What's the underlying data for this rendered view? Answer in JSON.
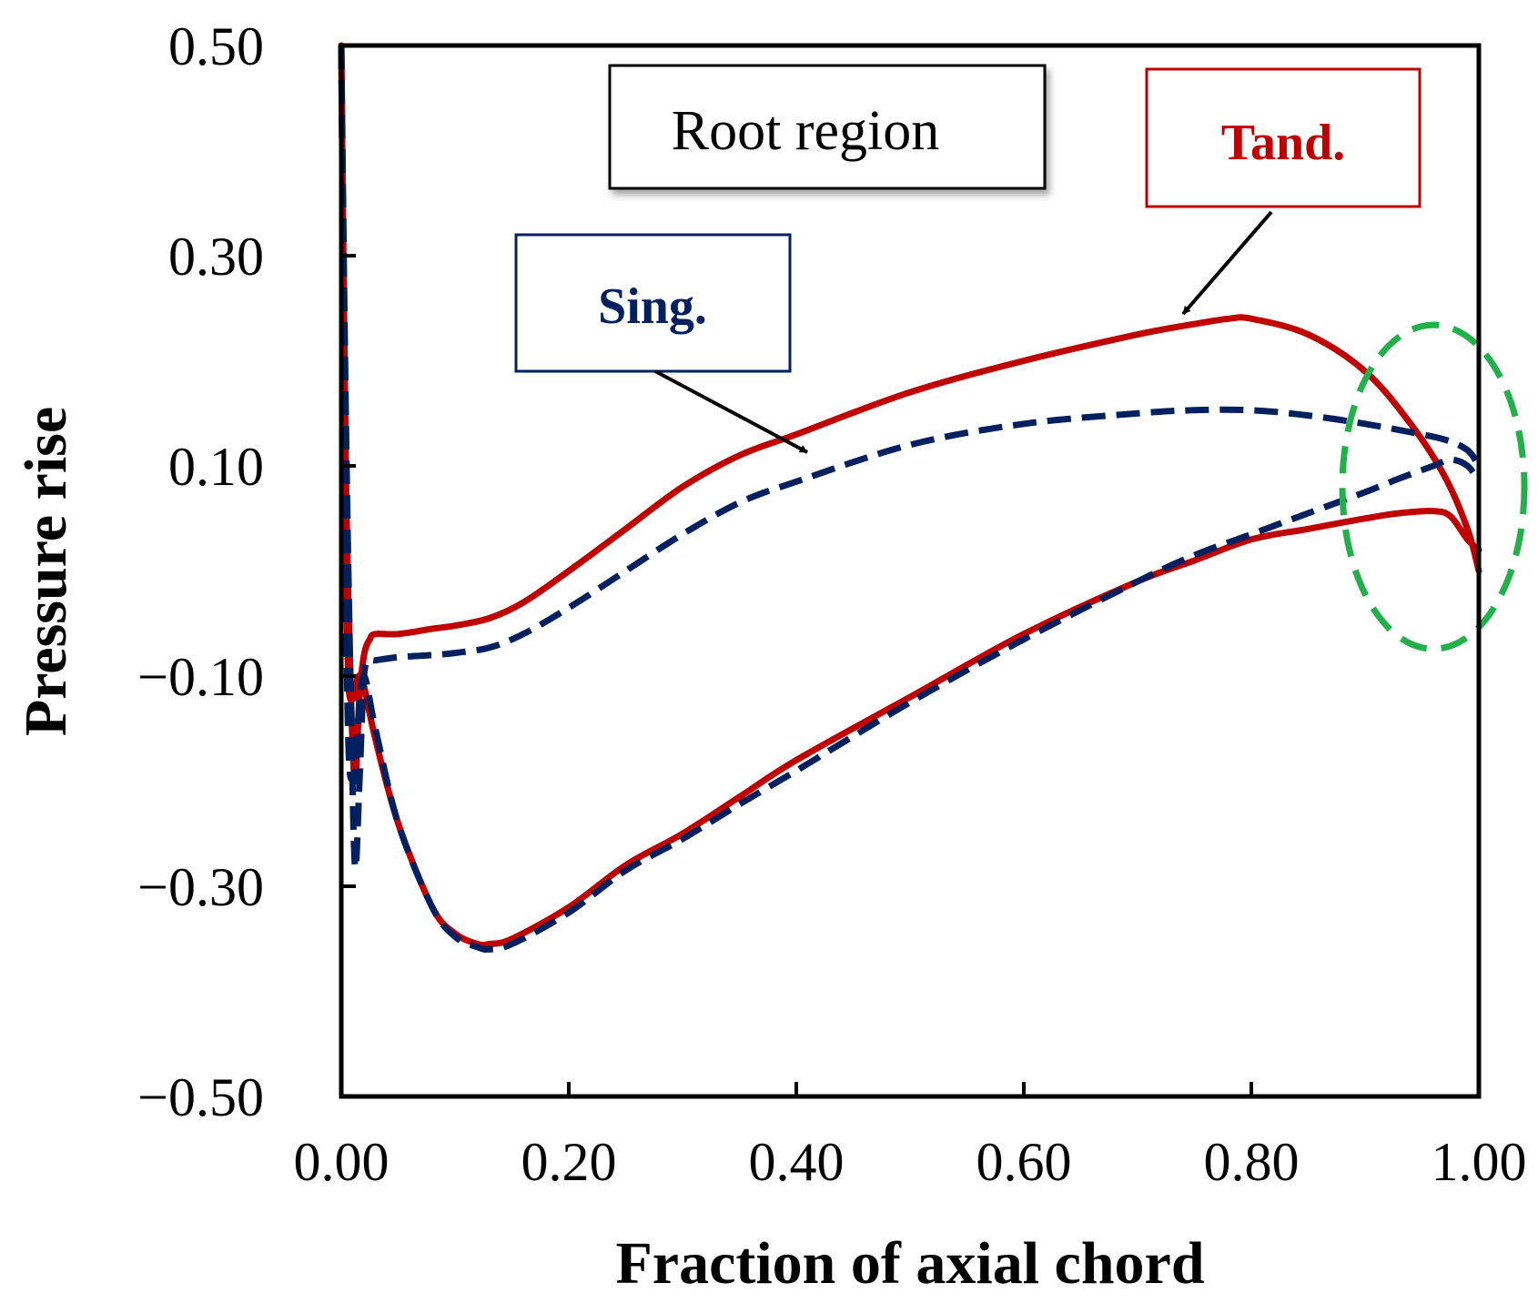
{
  "chart_data": {
    "type": "line",
    "title": "",
    "xlabel": "Fraction of axial chord",
    "ylabel": "Pressure rise",
    "xlim": [
      0.0,
      1.0
    ],
    "ylim": [
      -0.5,
      0.5
    ],
    "xticks": [
      "0.00",
      "0.20",
      "0.40",
      "0.60",
      "0.80",
      "1.00"
    ],
    "yticks": [
      "0.50",
      "0.30",
      "0.10",
      "−0.10",
      "−0.30",
      "−0.50"
    ],
    "grid": false,
    "series": [
      {
        "name": "Tand.",
        "color": "#C00000",
        "style": "solid",
        "upper": {
          "x": [
            0.0,
            0.004,
            0.008,
            0.012,
            0.016,
            0.02,
            0.025,
            0.03,
            0.05,
            0.08,
            0.1,
            0.13,
            0.16,
            0.2,
            0.25,
            0.3,
            0.35,
            0.4,
            0.5,
            0.6,
            0.7,
            0.75,
            0.78,
            0.8,
            0.85,
            0.9,
            0.94,
            0.97,
            0.99,
            1.0
          ],
          "y": [
            0.5,
            0.1,
            -0.1,
            -0.2,
            -0.12,
            -0.08,
            -0.065,
            -0.06,
            -0.06,
            -0.055,
            -0.052,
            -0.045,
            -0.03,
            0.0,
            0.04,
            0.08,
            0.11,
            0.13,
            0.17,
            0.2,
            0.225,
            0.235,
            0.24,
            0.24,
            0.225,
            0.19,
            0.14,
            0.09,
            0.04,
            0.0
          ]
        },
        "lower": {
          "x": [
            0.0,
            0.005,
            0.01,
            0.015,
            0.02,
            0.03,
            0.05,
            0.08,
            0.1,
            0.12,
            0.13,
            0.15,
            0.2,
            0.25,
            0.3,
            0.35,
            0.4,
            0.5,
            0.6,
            0.7,
            0.75,
            0.8,
            0.85,
            0.9,
            0.93,
            0.96,
            0.975,
            0.99,
            1.0
          ],
          "y": [
            0.5,
            -0.05,
            -0.12,
            -0.1,
            -0.11,
            -0.16,
            -0.24,
            -0.32,
            -0.345,
            -0.355,
            -0.355,
            -0.35,
            -0.32,
            -0.28,
            -0.25,
            -0.215,
            -0.18,
            -0.12,
            -0.06,
            -0.01,
            0.01,
            0.03,
            0.04,
            0.05,
            0.055,
            0.057,
            0.052,
            0.03,
            0.02
          ]
        }
      },
      {
        "name": "Sing.",
        "color": "#002060",
        "style": "dashed",
        "upper": {
          "x": [
            0.0,
            0.004,
            0.008,
            0.012,
            0.016,
            0.02,
            0.025,
            0.03,
            0.05,
            0.08,
            0.1,
            0.13,
            0.16,
            0.2,
            0.25,
            0.3,
            0.35,
            0.4,
            0.5,
            0.6,
            0.7,
            0.75,
            0.8,
            0.85,
            0.9,
            0.94,
            0.97,
            0.99,
            1.0
          ],
          "y": [
            0.5,
            0.15,
            -0.1,
            -0.28,
            -0.2,
            -0.1,
            -0.085,
            -0.085,
            -0.082,
            -0.08,
            -0.078,
            -0.073,
            -0.06,
            -0.035,
            0.0,
            0.035,
            0.065,
            0.085,
            0.12,
            0.14,
            0.15,
            0.153,
            0.153,
            0.148,
            0.14,
            0.132,
            0.125,
            0.115,
            0.1
          ]
        },
        "lower": {
          "x": [
            0.0,
            0.005,
            0.01,
            0.015,
            0.02,
            0.03,
            0.05,
            0.08,
            0.1,
            0.12,
            0.13,
            0.15,
            0.2,
            0.25,
            0.3,
            0.35,
            0.4,
            0.5,
            0.6,
            0.7,
            0.75,
            0.8,
            0.85,
            0.9,
            0.93,
            0.96,
            0.975,
            0.99,
            1.0
          ],
          "y": [
            0.5,
            -0.1,
            -0.2,
            -0.14,
            -0.1,
            -0.15,
            -0.24,
            -0.32,
            -0.348,
            -0.358,
            -0.36,
            -0.355,
            -0.325,
            -0.285,
            -0.255,
            -0.222,
            -0.19,
            -0.125,
            -0.065,
            -0.01,
            0.015,
            0.035,
            0.055,
            0.075,
            0.088,
            0.1,
            0.106,
            0.1,
            0.085
          ]
        }
      }
    ],
    "annotations": [
      {
        "text": "Root region",
        "kind": "label-box",
        "border": "#000000",
        "color": "#000000"
      },
      {
        "text": "Tand.",
        "kind": "callout",
        "border": "#C00000",
        "color": "#C00000",
        "points_to": {
          "x": 0.74,
          "y": 0.24
        }
      },
      {
        "text": "Sing.",
        "kind": "callout",
        "border": "#002060",
        "color": "#002060",
        "points_to": {
          "x": 0.41,
          "y": 0.1
        }
      },
      {
        "kind": "highlight-ellipse",
        "color": "#22B04B",
        "center": {
          "x": 0.96,
          "y": 0.08
        }
      }
    ]
  }
}
